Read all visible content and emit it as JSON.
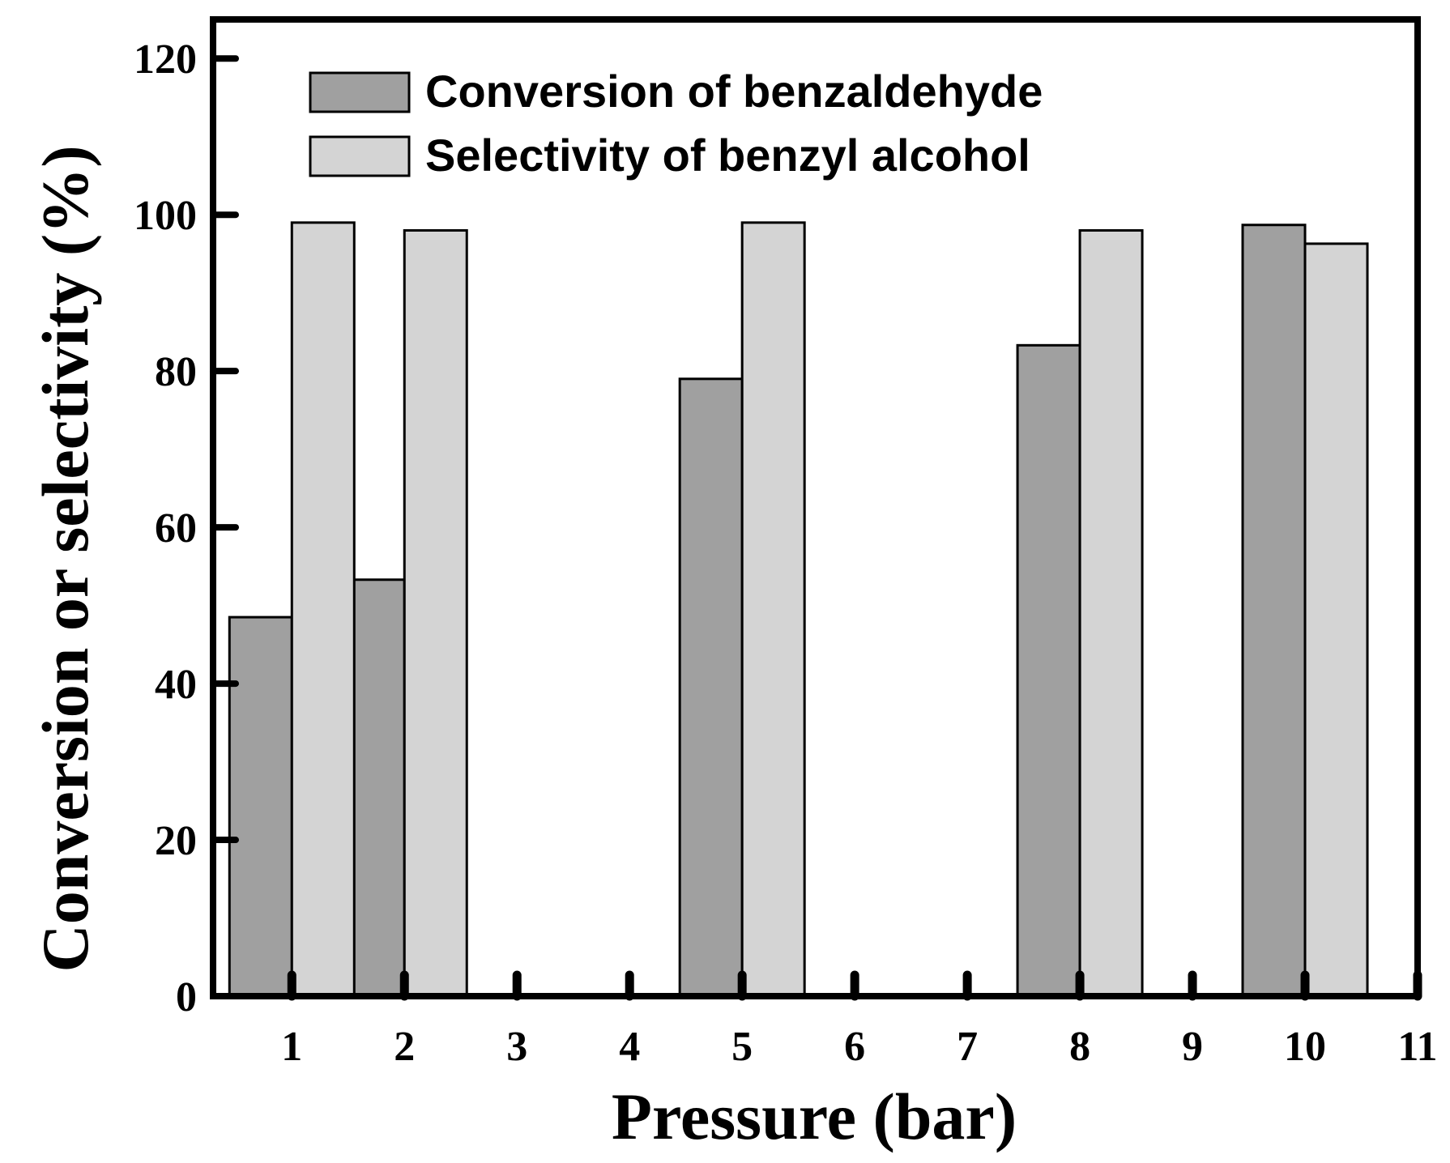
{
  "chart_data": {
    "type": "bar",
    "title": "",
    "xlabel": "Pressure (bar)",
    "ylabel": "Conversion or selectivity (%)",
    "xlim": [
      0.3,
      11
    ],
    "ylim": [
      0,
      125
    ],
    "x_ticks": [
      "1",
      "2",
      "3",
      "4",
      "5",
      "6",
      "7",
      "8",
      "9",
      "10",
      "11"
    ],
    "y_ticks": [
      "0",
      "20",
      "40",
      "60",
      "80",
      "100",
      "120"
    ],
    "grid": false,
    "legend_position": "top-left",
    "series": [
      {
        "name": "Conversion of benzaldehyde",
        "color": "#a0a0a0",
        "points": [
          {
            "x": 1,
            "value": 48.5
          },
          {
            "x": 2,
            "value": 53.3
          },
          {
            "x": 5,
            "value": 79.0
          },
          {
            "x": 8,
            "value": 83.3
          },
          {
            "x": 10,
            "value": 98.7
          }
        ]
      },
      {
        "name": "Selectivity of benzyl alcohol",
        "color": "#d4d4d4",
        "points": [
          {
            "x": 1,
            "value": 99.0
          },
          {
            "x": 2,
            "value": 98.0
          },
          {
            "x": 5,
            "value": 99.0
          },
          {
            "x": 8,
            "value": 98.0
          },
          {
            "x": 10,
            "value": 96.3
          }
        ]
      }
    ]
  }
}
